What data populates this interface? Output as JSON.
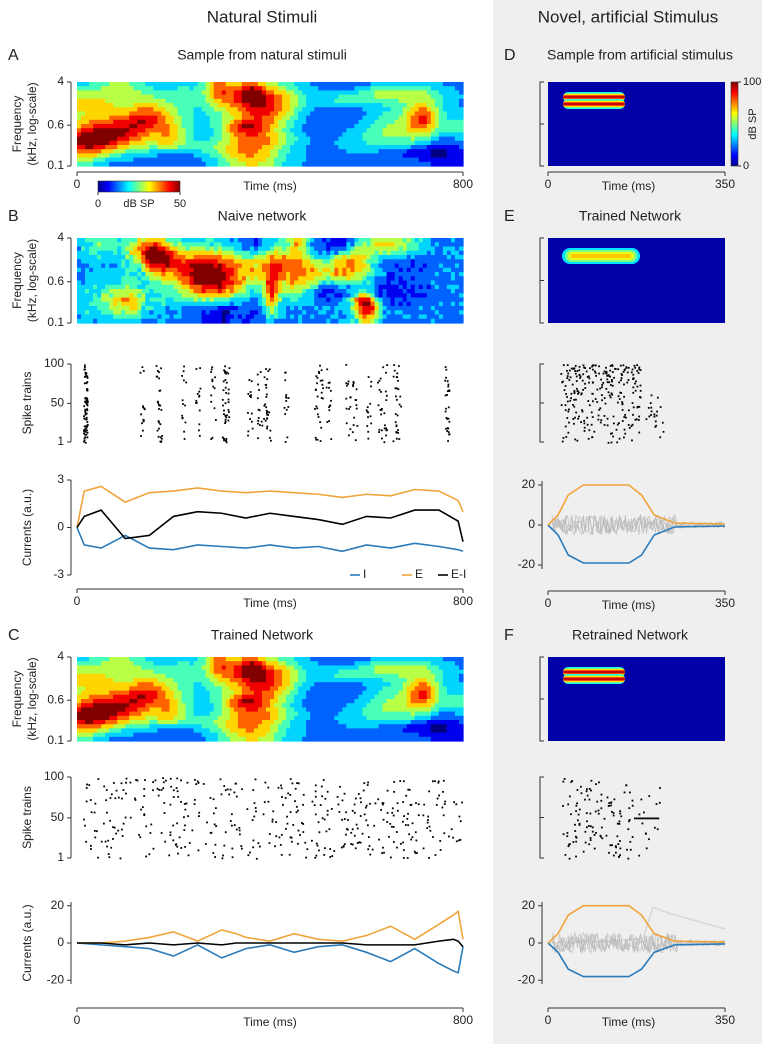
{
  "columns": [
    {
      "title": "Natural Stimuli"
    },
    {
      "title": "Novel, artificial Stimulus"
    }
  ],
  "panels": [
    {
      "label": "A",
      "title": "Sample from natural stimuli",
      "plots": [
        {
          "type": "spectrogram",
          "ylabel": [
            "Frequency",
            "(kHz, log-scale)"
          ],
          "ylim": [
            0.1,
            4
          ],
          "log": true,
          "yticks": [
            0.1,
            0.6,
            4
          ],
          "xlabel": "Time (ms)",
          "xlim": [
            0,
            800
          ],
          "xticks": [
            0,
            800
          ],
          "colorbar": {
            "label": "dB SP",
            "clim": [
              0,
              50
            ],
            "ticks": [
              0,
              50
            ]
          }
        }
      ]
    },
    {
      "label": "D",
      "title": "Sample from artificial stimulus",
      "plots": [
        {
          "type": "spectrogram",
          "xlabel": "Time (ms)",
          "xlim": [
            0,
            350
          ],
          "xticks": [
            0,
            350
          ],
          "colorbar": {
            "label": "dB SP",
            "clim": [
              0,
              100
            ],
            "ticks": [
              0,
              100
            ]
          }
        }
      ]
    },
    {
      "label": "B",
      "title": "Naive network",
      "plots": [
        {
          "type": "spectrogram",
          "ylabel": [
            "Frequency",
            "(kHz, log-scale)"
          ],
          "ylim": [
            0.1,
            4
          ],
          "log": true,
          "yticks": [
            0.1,
            0.6,
            4
          ]
        },
        {
          "type": "raster",
          "ylabel": [
            "Spike trains"
          ],
          "ylim": [
            1,
            100
          ],
          "yticks": [
            1,
            50,
            100
          ]
        },
        {
          "type": "currents",
          "ylabel": [
            "Currents  (a.u.)"
          ],
          "ylim": [
            -3,
            3
          ],
          "yticks": [
            -3,
            0,
            3
          ],
          "xlim": [
            0,
            800
          ],
          "xticks": [
            0,
            800
          ],
          "xlabel": "Time (ms)",
          "legend": true,
          "x": [
            0,
            15,
            50,
            100,
            150,
            200,
            250,
            300,
            350,
            400,
            450,
            500,
            550,
            600,
            650,
            700,
            750,
            790,
            800
          ],
          "series": [
            {
              "name": "I",
              "color": "#2b7bba",
              "values": [
                0,
                -1.1,
                -1.3,
                -0.5,
                -1.3,
                -1.4,
                -1.1,
                -1.2,
                -1.3,
                -1.1,
                -1.3,
                -1.2,
                -1.5,
                -1.1,
                -1.3,
                -1.0,
                -1.2,
                -1.4,
                -1.5
              ]
            },
            {
              "name": "E",
              "color": "#f0a43a",
              "values": [
                0,
                2.3,
                2.6,
                1.6,
                2.2,
                2.3,
                2.5,
                2.3,
                2.2,
                2.3,
                2.2,
                2.1,
                1.9,
                2.1,
                2.0,
                2.4,
                2.3,
                1.7,
                1.0
              ]
            },
            {
              "name": "E-I",
              "color": "#000000",
              "values": [
                0,
                0.7,
                1.1,
                -0.7,
                -0.5,
                0.7,
                1.0,
                0.9,
                0.6,
                0.9,
                0.7,
                0.5,
                0.2,
                0.7,
                0.6,
                1.1,
                1.1,
                0.4,
                -0.9
              ]
            }
          ]
        }
      ]
    },
    {
      "label": "E",
      "title": "Trained Network",
      "plots": [
        {
          "type": "spectrogram"
        },
        {
          "type": "raster"
        },
        {
          "type": "currents",
          "ylim": [
            -22,
            22
          ],
          "yticks": [
            -20,
            0,
            20
          ],
          "xlim": [
            0,
            350
          ],
          "xticks": [
            0,
            350
          ],
          "xlabel": "Time (ms)",
          "x": [
            0,
            20,
            40,
            70,
            160,
            185,
            210,
            250,
            350
          ],
          "series": [
            {
              "name": "I",
              "color": "#2b7bba",
              "values": [
                0,
                -5,
                -15,
                -19,
                -19,
                -15,
                -5,
                -1,
                -0.5
              ]
            },
            {
              "name": "E",
              "color": "#f0a43a",
              "values": [
                0,
                5,
                15,
                20,
                20,
                15,
                5,
                1,
                0.5
              ]
            }
          ]
        }
      ]
    },
    {
      "label": "C",
      "title": "Trained Network",
      "plots": [
        {
          "type": "spectrogram",
          "ylabel": [
            "Frequency",
            "(kHz, log-scale)"
          ],
          "ylim": [
            0.1,
            4
          ],
          "log": true,
          "yticks": [
            0.1,
            0.6,
            4
          ]
        },
        {
          "type": "raster",
          "ylabel": [
            "Spike trains"
          ],
          "ylim": [
            1,
            100
          ],
          "yticks": [
            1,
            50,
            100
          ]
        },
        {
          "type": "currents",
          "ylabel": [
            "Currents  (a.u.)"
          ],
          "ylim": [
            -22,
            22
          ],
          "yticks": [
            -20,
            0,
            20
          ],
          "xlim": [
            0,
            800
          ],
          "xticks": [
            0,
            800
          ],
          "xlabel": "Time (ms)",
          "x": [
            0,
            50,
            100,
            150,
            200,
            250,
            300,
            330,
            350,
            400,
            450,
            500,
            550,
            600,
            650,
            700,
            750,
            780,
            790,
            800
          ],
          "series": [
            {
              "name": "I",
              "color": "#2b7bba",
              "values": [
                0,
                -1,
                -2,
                -3,
                -7,
                -1,
                -8,
                -5,
                -3,
                -1,
                -5,
                -2,
                -1,
                -5,
                -10,
                -3,
                -11,
                -15,
                -16,
                -2
              ]
            },
            {
              "name": "E",
              "color": "#f0a43a",
              "values": [
                0,
                0,
                1,
                3,
                6,
                1,
                7,
                5,
                3,
                1,
                5,
                2,
                1,
                4,
                9,
                2,
                10,
                15,
                17,
                2
              ]
            },
            {
              "name": "E-I",
              "color": "#000000",
              "values": [
                0,
                0,
                -1,
                0,
                -1,
                0,
                -1,
                0,
                0,
                0,
                0,
                0,
                0,
                -1,
                -1,
                -1,
                1,
                2,
                1,
                -2
              ]
            }
          ]
        }
      ]
    },
    {
      "label": "F",
      "title": "Retrained Network",
      "plots": [
        {
          "type": "spectrogram"
        },
        {
          "type": "raster"
        },
        {
          "type": "currents",
          "ylim": [
            -22,
            22
          ],
          "yticks": [
            -20,
            0,
            20
          ],
          "xlim": [
            0,
            350
          ],
          "xticks": [
            0,
            350
          ],
          "xlabel": "Time (ms)",
          "x": [
            0,
            20,
            40,
            70,
            160,
            185,
            210,
            250,
            350
          ],
          "series": [
            {
              "name": "I",
              "color": "#2b7bba",
              "values": [
                0,
                -5,
                -14,
                -18,
                -18,
                -14,
                -5,
                -1,
                -0.5
              ]
            },
            {
              "name": "E",
              "color": "#f0a43a",
              "values": [
                0,
                5,
                15,
                20,
                20,
                15,
                5,
                1,
                0.5
              ]
            }
          ]
        }
      ]
    }
  ]
}
